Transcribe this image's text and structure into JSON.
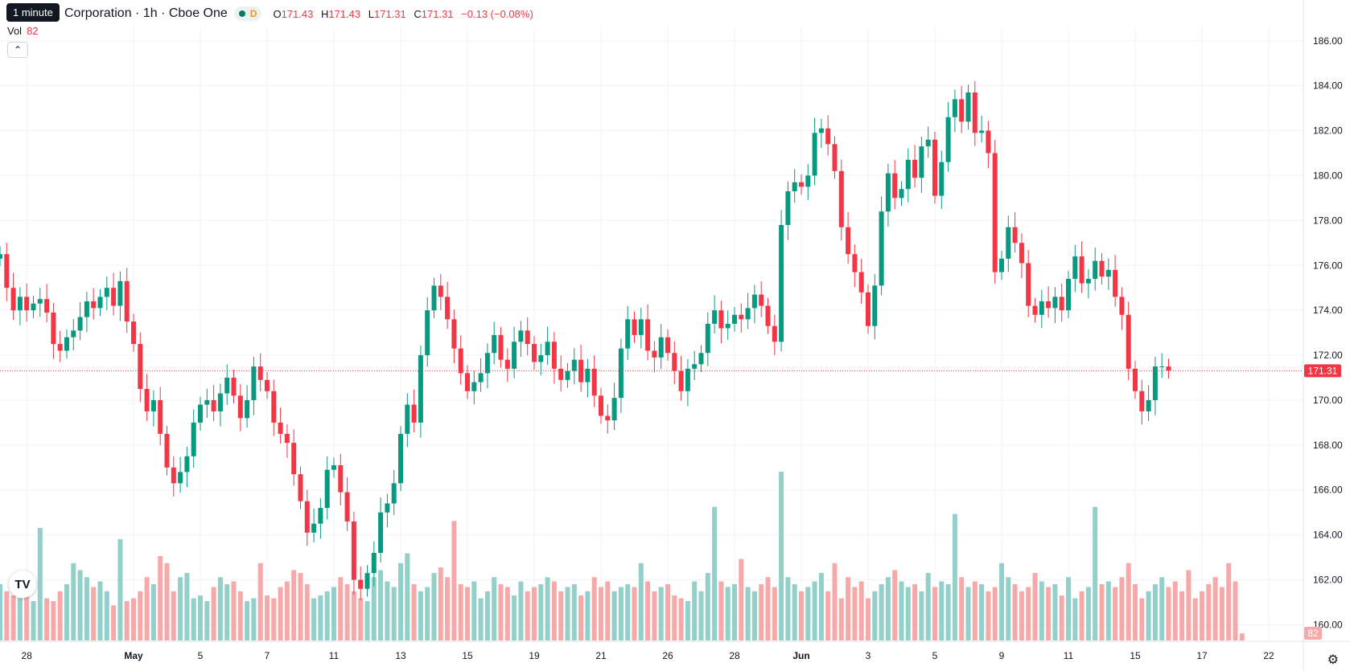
{
  "tooltip": "1 minute",
  "header": {
    "symbol_title": "Corporation · 1h · Cboe One",
    "status_badge": "D",
    "ohlc": {
      "o_label": "O",
      "o": "171.43",
      "h_label": "H",
      "h": "171.43",
      "l_label": "L",
      "l": "171.31",
      "c_label": "C",
      "c": "171.31",
      "change": "−0.13 (−0.08%)"
    }
  },
  "volume_legend": {
    "label": "Vol",
    "value": "82"
  },
  "collapse_icon": "chevron-up-icon",
  "logo_text": "TV",
  "settings_icon": "gear-icon",
  "colors": {
    "up": "#089981",
    "down": "#f23645",
    "vol_up": "#93d0c9",
    "vol_down": "#f7a9a9",
    "last": "#f23645"
  },
  "chart_data": {
    "type": "candlestick",
    "y_ticks": [
      "160.00",
      "162.00",
      "164.00",
      "166.00",
      "168.00",
      "170.00",
      "172.00",
      "174.00",
      "176.00",
      "178.00",
      "180.00",
      "182.00",
      "184.00",
      "186.00"
    ],
    "y_range": [
      159.3,
      186.6
    ],
    "x_ticks": [
      {
        "label": "28",
        "i": 4
      },
      {
        "label": "May",
        "i": 20,
        "bold": true
      },
      {
        "label": "5",
        "i": 30
      },
      {
        "label": "7",
        "i": 40
      },
      {
        "label": "11",
        "i": 50
      },
      {
        "label": "13",
        "i": 60
      },
      {
        "label": "15",
        "i": 70
      },
      {
        "label": "19",
        "i": 80
      },
      {
        "label": "21",
        "i": 90
      },
      {
        "label": "26",
        "i": 100
      },
      {
        "label": "28",
        "i": 110
      },
      {
        "label": "Jun",
        "i": 120,
        "bold": true
      },
      {
        "label": "3",
        "i": 130
      },
      {
        "label": "5",
        "i": 140
      },
      {
        "label": "9",
        "i": 150
      },
      {
        "label": "11",
        "i": 160
      },
      {
        "label": "15",
        "i": 170
      },
      {
        "label": "17",
        "i": 180
      },
      {
        "label": "22",
        "i": 190
      }
    ],
    "last_price": "171.31",
    "last_price_value": 171.31,
    "last_volume": "82",
    "closes": [
      176.5,
      175.0,
      174.0,
      174.6,
      174.0,
      174.3,
      174.5,
      173.9,
      172.5,
      172.2,
      172.8,
      173.1,
      173.7,
      174.4,
      174.1,
      174.6,
      175.0,
      174.2,
      175.3,
      173.5,
      172.5,
      170.5,
      169.5,
      170.0,
      168.5,
      167.0,
      166.3,
      166.8,
      167.5,
      169.0,
      169.8,
      170.0,
      169.5,
      170.3,
      171.0,
      170.2,
      169.2,
      170.0,
      171.5,
      170.9,
      170.4,
      169.0,
      168.5,
      168.1,
      166.7,
      165.5,
      164.1,
      164.5,
      165.2,
      166.9,
      167.1,
      165.9,
      164.6,
      162.0,
      161.6,
      162.3,
      163.2,
      165.0,
      165.4,
      166.3,
      168.5,
      169.8,
      169.0,
      172.0,
      174.0,
      175.1,
      174.6,
      173.6,
      172.3,
      171.2,
      170.4,
      170.8,
      171.2,
      172.1,
      172.9,
      171.8,
      171.4,
      172.6,
      173.1,
      172.5,
      171.7,
      172.0,
      172.6,
      171.4,
      170.9,
      171.3,
      171.8,
      170.8,
      171.4,
      170.2,
      169.3,
      169.1,
      170.1,
      172.3,
      173.6,
      172.9,
      173.6,
      172.2,
      171.9,
      172.8,
      172.1,
      171.3,
      170.4,
      171.4,
      171.6,
      172.1,
      173.4,
      174.0,
      173.2,
      173.4,
      173.8,
      173.6,
      174.1,
      174.7,
      174.2,
      173.3,
      172.6,
      177.8,
      179.3,
      179.7,
      179.5,
      180.0,
      181.9,
      182.1,
      181.4,
      180.2,
      177.7,
      176.5,
      175.7,
      174.8,
      173.3,
      175.1,
      178.4,
      180.1,
      179.0,
      179.4,
      180.7,
      179.9,
      181.3,
      181.6,
      179.1,
      180.6,
      182.6,
      183.4,
      182.4,
      183.7,
      181.9,
      182.0,
      181.0,
      175.7,
      176.3,
      177.7,
      177.0,
      176.1,
      174.2,
      173.8,
      174.4,
      174.1,
      174.6,
      174.0,
      175.4,
      176.4,
      175.2,
      175.4,
      176.2,
      175.5,
      175.8,
      174.6,
      173.8,
      171.4,
      170.4,
      169.5,
      170.0,
      171.5,
      171.5,
      171.31
    ],
    "volumes": [
      40,
      35,
      32,
      30,
      33,
      28,
      80,
      30,
      28,
      35,
      40,
      55,
      50,
      45,
      38,
      42,
      35,
      25,
      72,
      28,
      30,
      35,
      45,
      40,
      60,
      55,
      35,
      45,
      48,
      30,
      32,
      28,
      38,
      45,
      40,
      42,
      35,
      28,
      30,
      55,
      32,
      30,
      38,
      42,
      50,
      48,
      40,
      30,
      32,
      35,
      38,
      45,
      40,
      35,
      30,
      28,
      45,
      50,
      42,
      38,
      55,
      62,
      40,
      35,
      38,
      48,
      52,
      45,
      85,
      40,
      38,
      42,
      30,
      35,
      45,
      40,
      38,
      32,
      42,
      35,
      38,
      40,
      45,
      42,
      35,
      38,
      40,
      32,
      35,
      45,
      38,
      42,
      35,
      38,
      40,
      38,
      55,
      42,
      35,
      38,
      40,
      32,
      30,
      28,
      42,
      35,
      48,
      95,
      42,
      38,
      40,
      58,
      38,
      35,
      40,
      45,
      38,
      120,
      45,
      40,
      35,
      38,
      42,
      48,
      35,
      55,
      30,
      45,
      38,
      42,
      30,
      35,
      40,
      45,
      50,
      42,
      38,
      40,
      35,
      48,
      38,
      42,
      40,
      90,
      45,
      38,
      42,
      40,
      35,
      38,
      55,
      45,
      40,
      35,
      38,
      48,
      42,
      38,
      40,
      32,
      45,
      30,
      35,
      38,
      95,
      40,
      42,
      38,
      45,
      55,
      40,
      30,
      35,
      40,
      45,
      38,
      42,
      35,
      50,
      30,
      35,
      40,
      45,
      38,
      55,
      42,
      5
    ]
  }
}
